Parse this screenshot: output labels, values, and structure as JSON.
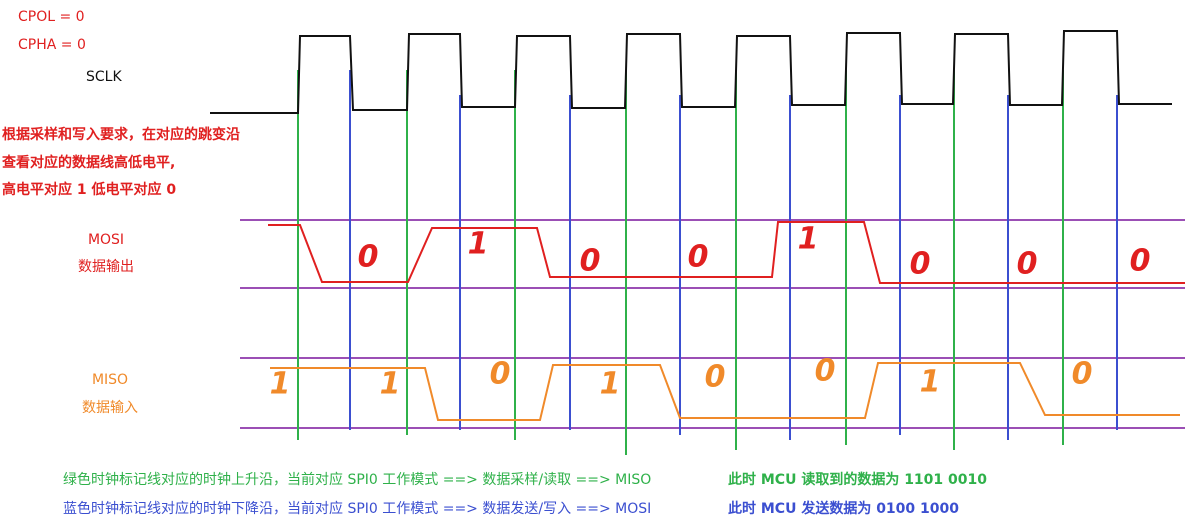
{
  "labels": {
    "cpol": "CPOL = 0",
    "cpha": "CPHA = 0",
    "sclk": "SCLK"
  },
  "note": [
    "根据采样和写入要求，在对应的跳变沿",
    "查看对应的数据线高低电平,",
    "高电平对应 1 低电平对应 0"
  ],
  "mosi": {
    "name": "MOSI",
    "desc": "数据输出",
    "bits": [
      "0",
      "1",
      "0",
      "0",
      "1",
      "0",
      "0",
      "0"
    ]
  },
  "miso": {
    "name": "MISO",
    "desc": "数据输入",
    "bits": [
      "1",
      "1",
      "0",
      "1",
      "0",
      "0",
      "1",
      "0"
    ]
  },
  "legend": [
    {
      "text": "绿色时钟标记线对应的时钟上升沿，当前对应 SPI0 工作模式 ==> 数据采样/读取 ==> MISO",
      "result": "此时 MCU 读取到的数据为 1101 0010"
    },
    {
      "text": "蓝色时钟标记线对应的时钟下降沿，当前对应 SPI0 工作模式 ==> 数据发送/写入 ==> MOSI",
      "result": "此时 MCU 发送数据为 0100 1000"
    }
  ]
}
